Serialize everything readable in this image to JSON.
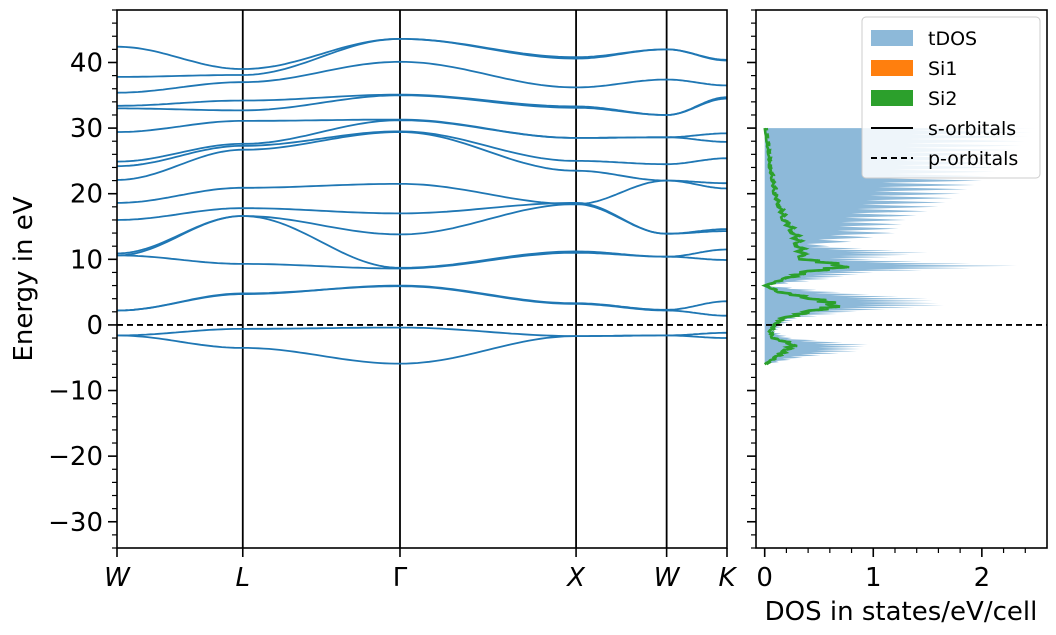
{
  "chart_data": [
    {
      "type": "line",
      "panel": "band-structure",
      "ylabel": "Energy in eV",
      "ylim": [
        -34,
        48
      ],
      "yticks": [
        -30,
        -20,
        -10,
        0,
        10,
        20,
        30,
        40
      ],
      "ytick_labels": [
        "−30",
        "−20",
        "−10",
        "0",
        "10",
        "20",
        "30",
        "40"
      ],
      "xlim": [
        0,
        4.85
      ],
      "kpoints": [
        {
          "label": "W",
          "x": 0
        },
        {
          "label": "L",
          "x": 1.0
        },
        {
          "label": "Γ",
          "x": 2.25
        },
        {
          "label": "X",
          "x": 3.65
        },
        {
          "label": "W",
          "x": 4.37
        },
        {
          "label": "K",
          "x": 4.85
        }
      ],
      "fermi_level": 0,
      "line_color": "#1f77b4",
      "bands": [
        [
          -1.6,
          -3.5,
          -5.9,
          -1.7,
          -1.6,
          -2.0
        ],
        [
          -1.6,
          -0.6,
          -0.4,
          -1.7,
          -1.6,
          -1.2
        ],
        [
          2.2,
          4.7,
          6.0,
          3.3,
          2.3,
          3.6
        ],
        [
          2.2,
          4.8,
          5.9,
          3.2,
          2.2,
          1.4
        ],
        [
          10.6,
          9.3,
          8.6,
          11.0,
          10.4,
          9.9
        ],
        [
          10.6,
          16.6,
          8.7,
          11.2,
          10.4,
          11.5
        ],
        [
          10.9,
          16.6,
          13.8,
          18.4,
          13.9,
          14.3
        ],
        [
          16.0,
          17.8,
          17.0,
          18.6,
          13.9,
          14.6
        ],
        [
          18.6,
          20.9,
          21.5,
          18.4,
          22.0,
          20.8
        ],
        [
          22.1,
          26.7,
          29.4,
          23.5,
          22.0,
          21.6
        ],
        [
          24.2,
          27.3,
          29.5,
          25.0,
          24.5,
          25.4
        ],
        [
          24.9,
          27.6,
          31.2,
          28.5,
          28.6,
          27.9
        ],
        [
          29.4,
          31.1,
          31.3,
          28.5,
          28.6,
          29.2
        ],
        [
          33.0,
          32.7,
          35.0,
          33.1,
          32.0,
          34.5
        ],
        [
          33.4,
          34.2,
          35.1,
          33.3,
          32.0,
          34.7
        ],
        [
          35.4,
          37.0,
          40.1,
          36.2,
          37.4,
          36.5
        ],
        [
          37.8,
          38.1,
          43.6,
          40.6,
          42.0,
          40.3
        ],
        [
          42.4,
          39.0,
          43.6,
          40.8,
          42.0,
          40.4
        ]
      ]
    },
    {
      "type": "area",
      "panel": "density-of-states",
      "xlabel": "DOS in states/eV/cell",
      "xlim": [
        -0.08,
        2.6
      ],
      "xticks": [
        0,
        1,
        2
      ],
      "ylim": [
        -34,
        48
      ],
      "fermi_level": 0,
      "legend_position": "top-right",
      "legend": [
        {
          "label": "tDOS",
          "style": "patch",
          "color": "#8db9d9"
        },
        {
          "label": "Si1",
          "style": "patch",
          "color": "#ff7f0e"
        },
        {
          "label": "Si2",
          "style": "patch",
          "color": "#2ca02c"
        },
        {
          "label": "s-orbitals",
          "style": "solid-line",
          "color": "#000000"
        },
        {
          "label": "p-orbitals",
          "style": "dashed-line",
          "color": "#000000"
        }
      ],
      "series": [
        {
          "name": "tDOS",
          "color": "#8db9d9",
          "energy": [
            -6,
            -5,
            -4,
            -3,
            -2,
            -1,
            0,
            1,
            2,
            3,
            4,
            5,
            6,
            7,
            8,
            9,
            10,
            11,
            12,
            14,
            16,
            18,
            20,
            22,
            24,
            26,
            28,
            30
          ],
          "values": [
            0.02,
            0.35,
            0.85,
            0.95,
            0.25,
            0.1,
            0.18,
            0.3,
            0.85,
            1.65,
            1.5,
            0.7,
            0.03,
            0.6,
            1.0,
            2.35,
            1.0,
            1.5,
            0.6,
            1.2,
            1.3,
            1.6,
            1.8,
            2.0,
            2.2,
            2.3,
            2.4,
            2.5
          ]
        },
        {
          "name": "Si2",
          "color": "#2ca02c",
          "energy": [
            -6,
            -5,
            -4,
            -3,
            -2,
            -1,
            0,
            1,
            2,
            3,
            4,
            5,
            6,
            7,
            8,
            9,
            10,
            12,
            14,
            16,
            18,
            20,
            22,
            24,
            26,
            28,
            30
          ],
          "values": [
            0.0,
            0.1,
            0.2,
            0.3,
            0.08,
            0.05,
            0.1,
            0.18,
            0.45,
            0.75,
            0.5,
            0.15,
            0.0,
            0.2,
            0.4,
            0.85,
            0.4,
            0.35,
            0.3,
            0.2,
            0.15,
            0.1,
            0.08,
            0.05,
            0.04,
            0.02,
            0.0
          ]
        }
      ]
    }
  ]
}
